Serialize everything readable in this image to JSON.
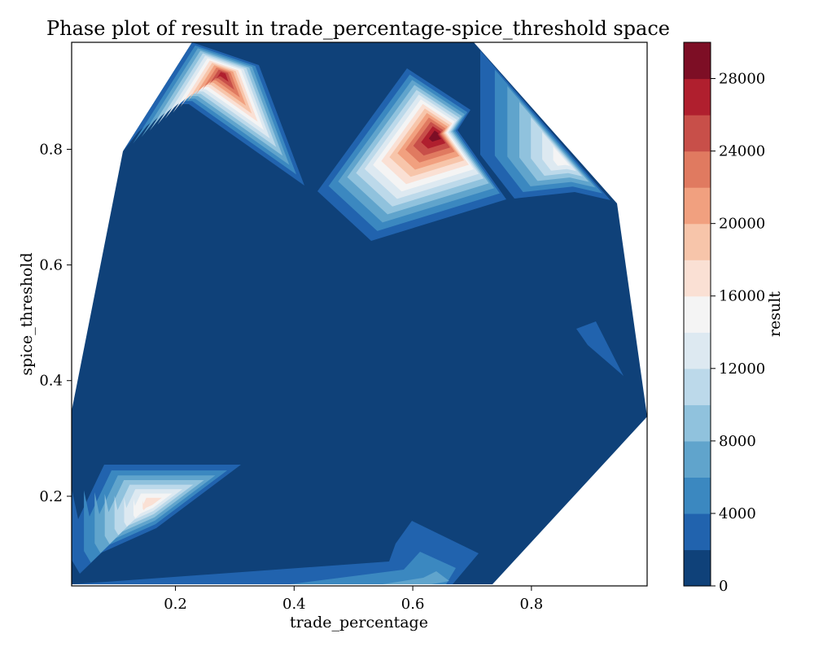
{
  "chart_data": {
    "type": "contourf",
    "title": "Phase plot of result in trade_percentage-spice_threshold space",
    "xlabel": "trade_percentage",
    "ylabel": "spice_threshold",
    "colorbar_label": "result",
    "xlim": [
      0.025,
      0.995
    ],
    "ylim": [
      0.045,
      0.985
    ],
    "xticks": [
      0.2,
      0.4,
      0.6,
      0.8
    ],
    "xtick_labels": [
      "0.2",
      "0.4",
      "0.6",
      "0.8"
    ],
    "yticks": [
      0.2,
      0.4,
      0.6,
      0.8
    ],
    "ytick_labels": [
      "0.2",
      "0.4",
      "0.6",
      "0.8"
    ],
    "colorbar_range": [
      0,
      30000
    ],
    "colorbar_ticks": [
      0,
      4000,
      8000,
      12000,
      16000,
      20000,
      24000,
      28000
    ],
    "colorbar_tick_labels": [
      "0",
      "4000",
      "8000",
      "12000",
      "16000",
      "20000",
      "24000",
      "28000"
    ],
    "levels": [
      0,
      2000,
      4000,
      6000,
      8000,
      10000,
      12000,
      14000,
      16000,
      18000,
      20000,
      22000,
      24000,
      26000,
      28000,
      30000
    ],
    "level_colors": [
      "#0f4179",
      "#2163ae",
      "#3b88c0",
      "#60a4cc",
      "#90c2dd",
      "#bcd9ea",
      "#dde9f1",
      "#f4f4f4",
      "#fae0d4",
      "#f7c5aa",
      "#f1a07f",
      "#e07a60",
      "#c84f49",
      "#b01f2e",
      "#7d0e25"
    ],
    "peaks": [
      {
        "x": 0.28,
        "y": 0.93,
        "value": 27000
      },
      {
        "x": 0.64,
        "y": 0.825,
        "value": 30000
      },
      {
        "x": 0.16,
        "y": 0.19,
        "value": 17000
      },
      {
        "x": 0.855,
        "y": 0.78,
        "value": 15000
      }
    ],
    "minor_features": [
      {
        "x": 0.63,
        "y": 0.08,
        "value": 7000
      },
      {
        "x": 0.93,
        "y": 0.46,
        "value": 3000
      }
    ],
    "grid": false
  }
}
